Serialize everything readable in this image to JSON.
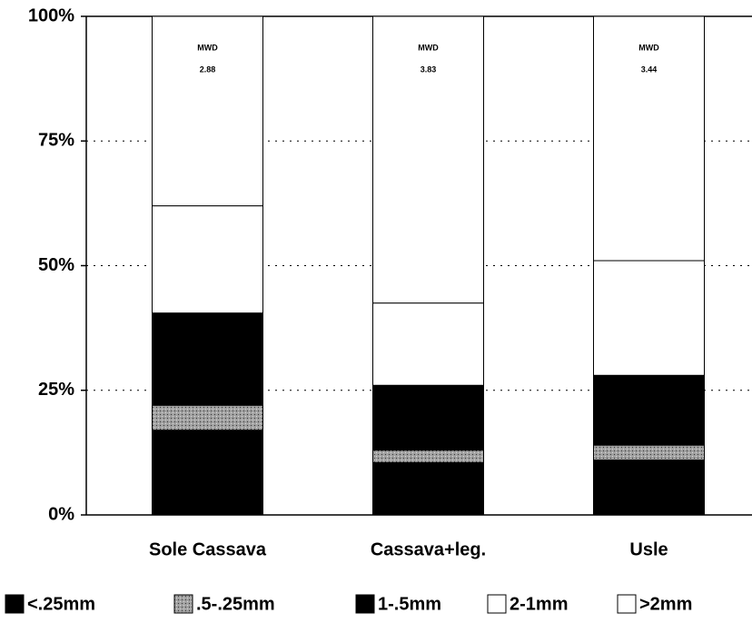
{
  "chart_data": {
    "type": "stacked_bar",
    "categories": [
      "Sole Cassava",
      "Cassava+leg.",
      "Usle"
    ],
    "series": [
      {
        "name": "<.25mm",
        "color": "#000000",
        "values": [
          17,
          10.5,
          11
        ]
      },
      {
        "name": ".5-.25mm",
        "color": "#9a9a9a",
        "values": [
          5,
          2.5,
          3
        ]
      },
      {
        "name": "1-.5mm",
        "color": "#000000",
        "values": [
          18.5,
          13,
          14
        ]
      },
      {
        "name": "2-1mm",
        "color": "#ffffff",
        "values": [
          21.5,
          16.5,
          23
        ]
      },
      {
        "name": ">2mm",
        "color": "#ffffff",
        "values": [
          38,
          57.5,
          49
        ]
      }
    ],
    "annotations": [
      {
        "text": "MWD",
        "value": 2.88
      },
      {
        "text": "MWD",
        "value": 3.83
      },
      {
        "text": "MWD",
        "value": 3.44
      }
    ],
    "ylim": [
      0,
      100
    ],
    "yticks": [
      {
        "value": 0,
        "label": "0%"
      },
      {
        "value": 25,
        "label": "25%"
      },
      {
        "value": 50,
        "label": "50%"
      },
      {
        "value": 75,
        "label": "75%"
      },
      {
        "value": 100,
        "label": "100%"
      }
    ],
    "grid": true,
    "legend": "bottom"
  }
}
